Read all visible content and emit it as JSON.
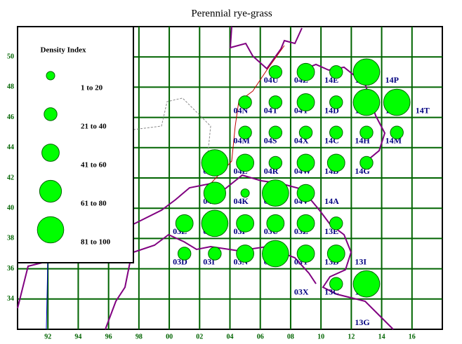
{
  "chart_data": {
    "type": "bubble-grid",
    "title": "Perennial rye-grass",
    "xlim": [
      90,
      118
    ],
    "ylim": [
      32,
      52
    ],
    "xticks": [
      92,
      94,
      96,
      98,
      {
        "value": 100,
        "label": "00"
      },
      {
        "value": 102,
        "label": "02"
      },
      {
        "value": 104,
        "label": "04"
      },
      {
        "value": 106,
        "label": "06"
      },
      {
        "value": 108,
        "label": "08"
      },
      {
        "value": 110,
        "label": "10"
      },
      {
        "value": 112,
        "label": "12"
      },
      {
        "value": 114,
        "label": "14"
      },
      {
        "value": 116,
        "label": "16"
      }
    ],
    "yticks": [
      34,
      36,
      38,
      40,
      42,
      44,
      46,
      48,
      50
    ],
    "grid": true,
    "color": "#00ff00",
    "legend": {
      "title": "Density Index",
      "classes": [
        "1 to 20",
        "21 to 40",
        "41 to 60",
        "61 to 80",
        "81 to 100"
      ]
    },
    "cells": [
      {
        "label": "04U",
        "x": 106,
        "y": 48
      },
      {
        "label": "04Z",
        "x": 108,
        "y": 48
      },
      {
        "label": "14E",
        "x": 110,
        "y": 48
      },
      {
        "label": "14J",
        "x": 112,
        "y": 48
      },
      {
        "label": "14P",
        "x": 114,
        "y": 48
      },
      {
        "label": "04N",
        "x": 104,
        "y": 46
      },
      {
        "label": "04T",
        "x": 106,
        "y": 46
      },
      {
        "label": "04Y",
        "x": 108,
        "y": 46
      },
      {
        "label": "14D",
        "x": 110,
        "y": 46
      },
      {
        "label": "14I",
        "x": 112,
        "y": 46
      },
      {
        "label": "14N",
        "x": 114,
        "y": 46
      },
      {
        "label": "14T",
        "x": 116,
        "y": 46
      },
      {
        "label": "04M",
        "x": 104,
        "y": 44
      },
      {
        "label": "04S",
        "x": 106,
        "y": 44
      },
      {
        "label": "04X",
        "x": 108,
        "y": 44
      },
      {
        "label": "14C",
        "x": 110,
        "y": 44
      },
      {
        "label": "14H",
        "x": 112,
        "y": 44
      },
      {
        "label": "14M",
        "x": 114,
        "y": 44
      },
      {
        "label": "04G",
        "x": 102,
        "y": 42
      },
      {
        "label": "04L",
        "x": 104,
        "y": 42
      },
      {
        "label": "04R",
        "x": 106,
        "y": 42
      },
      {
        "label": "04W",
        "x": 108,
        "y": 42
      },
      {
        "label": "14B",
        "x": 110,
        "y": 42
      },
      {
        "label": "14G",
        "x": 112,
        "y": 42
      },
      {
        "label": "04F",
        "x": 102,
        "y": 40
      },
      {
        "label": "04K",
        "x": 104,
        "y": 40
      },
      {
        "label": "04Q",
        "x": 106,
        "y": 40
      },
      {
        "label": "04V",
        "x": 108,
        "y": 40
      },
      {
        "label": "14A",
        "x": 110,
        "y": 40
      },
      {
        "label": "03E",
        "x": 100,
        "y": 38
      },
      {
        "label": "03J",
        "x": 102,
        "y": 38
      },
      {
        "label": "03P",
        "x": 104,
        "y": 38
      },
      {
        "label": "03U",
        "x": 106,
        "y": 38
      },
      {
        "label": "03Z",
        "x": 108,
        "y": 38
      },
      {
        "label": "13E",
        "x": 110,
        "y": 38
      },
      {
        "label": "03D",
        "x": 100,
        "y": 36
      },
      {
        "label": "03I",
        "x": 102,
        "y": 36
      },
      {
        "label": "03N",
        "x": 104,
        "y": 36
      },
      {
        "label": "03S",
        "x": 106,
        "y": 36
      },
      {
        "label": "03Y",
        "x": 108,
        "y": 36
      },
      {
        "label": "13D",
        "x": 110,
        "y": 36
      },
      {
        "label": "13I",
        "x": 112,
        "y": 36
      },
      {
        "label": "03X",
        "x": 108,
        "y": 34
      },
      {
        "label": "13C",
        "x": 110,
        "y": 34
      },
      {
        "label": "13H",
        "x": 112,
        "y": 34
      },
      {
        "label": "13G",
        "x": 112,
        "y": 32
      }
    ],
    "points": {
      "x": [
        107,
        109,
        111,
        113,
        105,
        107,
        109,
        111,
        113,
        115,
        105,
        107,
        109,
        111,
        113,
        115,
        103,
        105,
        107,
        109,
        111,
        113,
        103,
        105,
        107,
        109,
        101,
        103,
        105,
        107,
        109,
        111,
        101,
        103,
        105,
        107,
        109,
        111,
        111,
        113
      ],
      "y": [
        49,
        49,
        49,
        49,
        47,
        47,
        47,
        47,
        47,
        47,
        45,
        45,
        45,
        45,
        45,
        45,
        43,
        43,
        43,
        43,
        43,
        43,
        41,
        41,
        41,
        41,
        39,
        39,
        39,
        39,
        39,
        39,
        37,
        37,
        37,
        37,
        37,
        37,
        35,
        35
      ],
      "class": [
        1,
        2,
        1,
        4,
        1,
        1,
        2,
        1,
        4,
        4,
        1,
        1,
        1,
        1,
        1,
        1,
        4,
        2,
        1,
        2,
        2,
        1,
        3,
        0,
        4,
        2,
        2,
        4,
        2,
        2,
        2,
        1,
        1,
        1,
        2,
        4,
        2,
        2,
        1,
        4
      ]
    }
  }
}
